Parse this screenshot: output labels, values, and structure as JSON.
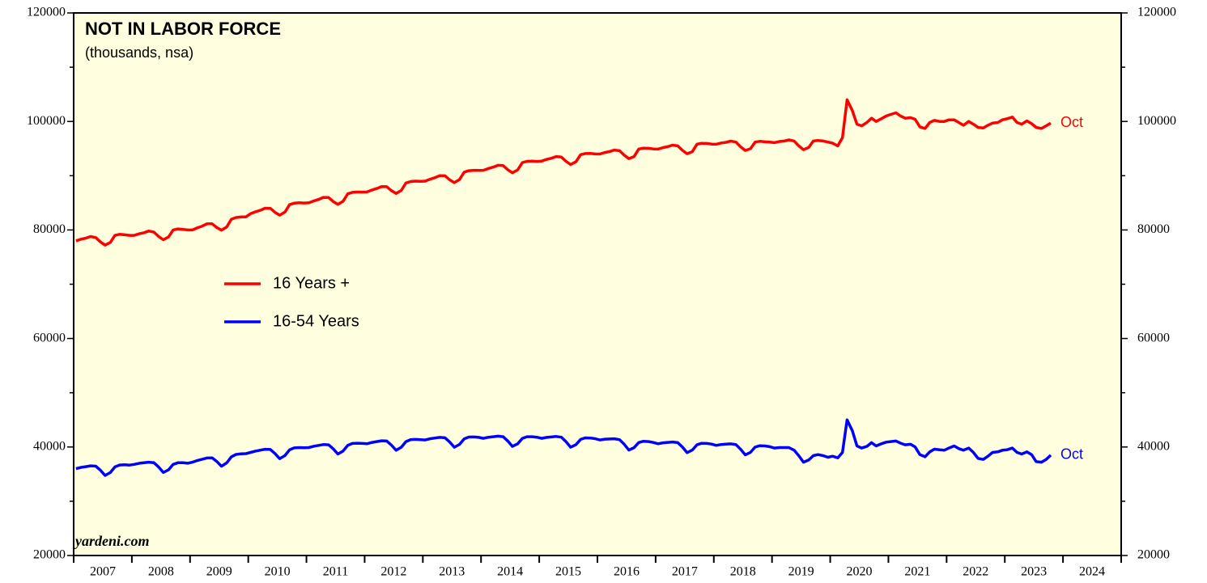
{
  "chart_data": {
    "type": "line",
    "title": "NOT IN LABOR FORCE",
    "subtitle": "(thousands, nsa)",
    "source": "yardeni.com",
    "x": [
      2007.04,
      2007.13,
      2007.21,
      2007.29,
      2007.38,
      2007.46,
      2007.54,
      2007.63,
      2007.71,
      2007.79,
      2007.88,
      2007.96,
      2008.04,
      2008.13,
      2008.21,
      2008.29,
      2008.38,
      2008.46,
      2008.54,
      2008.63,
      2008.71,
      2008.79,
      2008.88,
      2008.96,
      2009.04,
      2009.13,
      2009.21,
      2009.29,
      2009.38,
      2009.46,
      2009.54,
      2009.63,
      2009.71,
      2009.79,
      2009.88,
      2009.96,
      2010.04,
      2010.13,
      2010.21,
      2010.29,
      2010.38,
      2010.46,
      2010.54,
      2010.63,
      2010.71,
      2010.79,
      2010.88,
      2010.96,
      2011.04,
      2011.13,
      2011.21,
      2011.29,
      2011.38,
      2011.46,
      2011.54,
      2011.63,
      2011.71,
      2011.79,
      2011.88,
      2011.96,
      2012.04,
      2012.13,
      2012.21,
      2012.29,
      2012.38,
      2012.46,
      2012.54,
      2012.63,
      2012.71,
      2012.79,
      2012.88,
      2012.96,
      2013.04,
      2013.13,
      2013.21,
      2013.29,
      2013.38,
      2013.46,
      2013.54,
      2013.63,
      2013.71,
      2013.79,
      2013.88,
      2013.96,
      2014.04,
      2014.13,
      2014.21,
      2014.29,
      2014.38,
      2014.46,
      2014.54,
      2014.63,
      2014.71,
      2014.79,
      2014.88,
      2014.96,
      2015.04,
      2015.13,
      2015.21,
      2015.29,
      2015.38,
      2015.46,
      2015.54,
      2015.63,
      2015.71,
      2015.79,
      2015.88,
      2015.96,
      2016.04,
      2016.13,
      2016.21,
      2016.29,
      2016.38,
      2016.46,
      2016.54,
      2016.63,
      2016.71,
      2016.79,
      2016.88,
      2016.96,
      2017.04,
      2017.13,
      2017.21,
      2017.29,
      2017.38,
      2017.46,
      2017.54,
      2017.63,
      2017.71,
      2017.79,
      2017.88,
      2017.96,
      2018.04,
      2018.13,
      2018.21,
      2018.29,
      2018.38,
      2018.46,
      2018.54,
      2018.63,
      2018.71,
      2018.79,
      2018.88,
      2018.96,
      2019.04,
      2019.13,
      2019.21,
      2019.29,
      2019.38,
      2019.46,
      2019.54,
      2019.63,
      2019.71,
      2019.79,
      2019.88,
      2019.96,
      2020.04,
      2020.13,
      2020.21,
      2020.29,
      2020.38,
      2020.46,
      2020.54,
      2020.63,
      2020.71,
      2020.79,
      2020.88,
      2020.96,
      2021.04,
      2021.13,
      2021.21,
      2021.29,
      2021.38,
      2021.46,
      2021.54,
      2021.63,
      2021.71,
      2021.79,
      2021.88,
      2021.96,
      2022.04,
      2022.13,
      2022.21,
      2022.29,
      2022.38,
      2022.46,
      2022.54,
      2022.63,
      2022.71,
      2022.79,
      2022.88,
      2022.96,
      2023.04,
      2023.13,
      2023.21,
      2023.29,
      2023.38,
      2023.46,
      2023.54,
      2023.63,
      2023.71,
      2023.79
    ],
    "series": [
      {
        "name": "16 Years +",
        "color": "#ff0000",
        "end_label": "Oct",
        "values": [
          78000,
          78300,
          78500,
          78800,
          78600,
          77800,
          77200,
          77700,
          79000,
          79200,
          79100,
          79000,
          79000,
          79300,
          79500,
          79800,
          79600,
          78800,
          78200,
          78700,
          80000,
          80200,
          80100,
          80000,
          80000,
          80410,
          80720,
          81130,
          81140,
          80450,
          79960,
          80570,
          81980,
          82290,
          82400,
          82410,
          83000,
          83370,
          83640,
          84010,
          83980,
          83250,
          82720,
          83290,
          84660,
          84930,
          85000,
          84970,
          85000,
          85370,
          85640,
          86010,
          85980,
          85250,
          84720,
          85290,
          86660,
          86930,
          87000,
          86970,
          87000,
          87370,
          87640,
          88010,
          87980,
          87250,
          86720,
          87290,
          88660,
          88930,
          89000,
          88970,
          89000,
          89370,
          89640,
          90010,
          89980,
          89250,
          88720,
          89290,
          90660,
          90930,
          91000,
          90970,
          91000,
          91340,
          91580,
          91920,
          91860,
          91100,
          90540,
          91080,
          92420,
          92660,
          92700,
          92640,
          92700,
          93010,
          93220,
          93530,
          93440,
          92650,
          92060,
          92570,
          93880,
          94090,
          94100,
          94010,
          94000,
          94280,
          94450,
          94730,
          94600,
          93780,
          93150,
          93530,
          94900,
          95080,
          95050,
          94930,
          94900,
          95180,
          95350,
          95630,
          95500,
          94680,
          94050,
          94430,
          95800,
          95980,
          95950,
          95830,
          95800,
          96030,
          96150,
          96380,
          96200,
          95330,
          94650,
          94980,
          96200,
          96330,
          96250,
          96180,
          96100,
          96300,
          96400,
          96600,
          96400,
          95500,
          94800,
          95200,
          96400,
          96500,
          96400,
          96200,
          96000,
          95500,
          97000,
          104000,
          102000,
          99500,
          99200,
          99800,
          100600,
          100000,
          100500,
          101000,
          101300,
          101600,
          101000,
          100600,
          100700,
          100400,
          99000,
          98700,
          99800,
          100200,
          100000,
          100000,
          100300,
          100300,
          99800,
          99300,
          100000,
          99500,
          98900,
          98800,
          99300,
          99700,
          99800,
          100300,
          100500,
          100800,
          99800,
          99500,
          100100,
          99600,
          98900,
          98700,
          99200,
          99700
        ]
      },
      {
        "name": "16-54 Years",
        "color": "#0000ff",
        "end_label": "Oct",
        "values": [
          36000,
          36240,
          36380,
          36530,
          36470,
          35710,
          34750,
          35290,
          36330,
          36680,
          36720,
          36660,
          36800,
          37000,
          37100,
          37200,
          37100,
          36300,
          35300,
          35800,
          36800,
          37100,
          37100,
          37000,
          37200,
          37530,
          37750,
          37980,
          38000,
          37330,
          36450,
          37080,
          38200,
          38630,
          38750,
          38780,
          39000,
          39260,
          39420,
          39580,
          39540,
          38800,
          37860,
          38420,
          39480,
          39840,
          39900,
          39860,
          39900,
          40150,
          40300,
          40450,
          40400,
          39650,
          38700,
          39250,
          40300,
          40650,
          40700,
          40650,
          40600,
          40850,
          41000,
          41150,
          41100,
          40350,
          39400,
          39950,
          41000,
          41350,
          41400,
          41350,
          41300,
          41530,
          41650,
          41780,
          41700,
          40930,
          39950,
          40480,
          41500,
          41830,
          41850,
          41780,
          41600,
          41800,
          41900,
          42000,
          41900,
          41100,
          40100,
          40600,
          41600,
          41900,
          41900,
          41800,
          41600,
          41780,
          41850,
          41930,
          41800,
          40980,
          39950,
          40430,
          41400,
          41680,
          41650,
          41530,
          41300,
          41440,
          41480,
          41520,
          41360,
          40500,
          39440,
          39880,
          40820,
          41060,
          41000,
          40840,
          40600,
          40780,
          40850,
          40930,
          40800,
          39980,
          38950,
          39430,
          40400,
          40680,
          40650,
          40530,
          40300,
          40460,
          40520,
          40580,
          40440,
          39600,
          38560,
          39020,
          39980,
          40240,
          40200,
          40060,
          39800,
          39900,
          39900,
          39900,
          39400,
          38400,
          37200,
          37600,
          38400,
          38600,
          38400,
          38100,
          38300,
          38000,
          39000,
          45000,
          43000,
          40200,
          39800,
          40100,
          40800,
          40200,
          40600,
          40900,
          41000,
          41100,
          40700,
          40400,
          40500,
          40000,
          38600,
          38200,
          39100,
          39600,
          39500,
          39400,
          39800,
          40200,
          39700,
          39400,
          39800,
          39000,
          37900,
          37700,
          38300,
          39000,
          39100,
          39400,
          39500,
          39800,
          39000,
          38700,
          39100,
          38600,
          37300,
          37200,
          37700,
          38500
        ]
      }
    ],
    "xlim": [
      2007,
      2025
    ],
    "xticks": [
      2007,
      2008,
      2009,
      2010,
      2011,
      2012,
      2013,
      2014,
      2015,
      2016,
      2017,
      2018,
      2019,
      2020,
      2021,
      2022,
      2023,
      2024,
      2025
    ],
    "xlabels": [
      {
        "value": 2007.5,
        "label": "2007"
      },
      {
        "value": 2008.5,
        "label": "2008"
      },
      {
        "value": 2009.5,
        "label": "2009"
      },
      {
        "value": 2010.5,
        "label": "2010"
      },
      {
        "value": 2011.5,
        "label": "2011"
      },
      {
        "value": 2012.5,
        "label": "2012"
      },
      {
        "value": 2013.5,
        "label": "2013"
      },
      {
        "value": 2014.5,
        "label": "2014"
      },
      {
        "value": 2015.5,
        "label": "2015"
      },
      {
        "value": 2016.5,
        "label": "2016"
      },
      {
        "value": 2017.5,
        "label": "2017"
      },
      {
        "value": 2018.5,
        "label": "2018"
      },
      {
        "value": 2019.5,
        "label": "2019"
      },
      {
        "value": 2020.5,
        "label": "2020"
      },
      {
        "value": 2021.5,
        "label": "2021"
      },
      {
        "value": 2022.5,
        "label": "2022"
      },
      {
        "value": 2023.5,
        "label": "2023"
      },
      {
        "value": 2024.5,
        "label": "2024"
      }
    ],
    "ylim": [
      20000,
      120000
    ],
    "yticks": [
      20000,
      40000,
      60000,
      80000,
      100000,
      120000
    ],
    "yminor": [
      30000,
      50000,
      70000,
      90000,
      110000
    ],
    "background": "#ffffe0",
    "legend": "left"
  }
}
